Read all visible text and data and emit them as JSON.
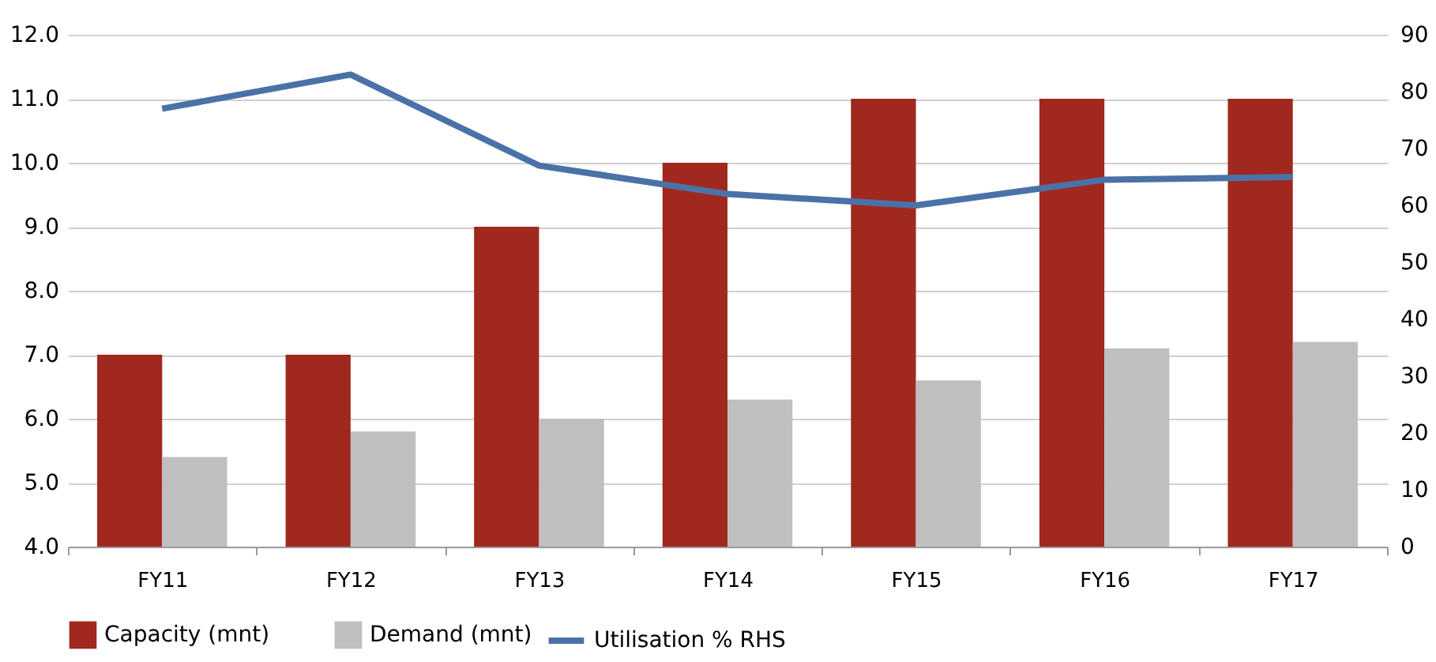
{
  "chart_data": {
    "type": "bar",
    "categories": [
      "FY11",
      "FY12",
      "FY13",
      "FY14",
      "FY15",
      "FY16",
      "FY17"
    ],
    "series": [
      {
        "name": "Capacity (mnt)",
        "color": "#a0281e",
        "values": [
          7,
          7,
          9,
          10,
          11,
          11,
          11
        ]
      },
      {
        "name": "Demand (mnt)",
        "color": "#bfbfbf",
        "values": [
          5.4,
          5.8,
          6.0,
          6.3,
          6.6,
          7.1,
          7.2
        ]
      },
      {
        "name": "Utilisation % RHS",
        "type": "line",
        "axis": "y2",
        "color": "#4a72a8",
        "values": [
          77,
          83,
          67,
          62,
          60,
          64.5,
          65
        ]
      }
    ],
    "ylim": [
      4,
      12
    ],
    "yticks": [
      {
        "value": 4,
        "label": "4.0"
      },
      {
        "value": 5,
        "label": "5.0"
      },
      {
        "value": 6,
        "label": "6.0"
      },
      {
        "value": 7,
        "label": "7.0"
      },
      {
        "value": 8,
        "label": "8.0"
      },
      {
        "value": 9,
        "label": "9.0"
      },
      {
        "value": 10,
        "label": "10.0"
      },
      {
        "value": 11,
        "label": "11.0"
      },
      {
        "value": 12,
        "label": "12.0"
      }
    ],
    "y2lim": [
      0,
      90
    ],
    "y2ticks": [
      0,
      10,
      20,
      30,
      40,
      50,
      60,
      70,
      80,
      90
    ],
    "grid": "y",
    "legend": "bottom",
    "marker": "none",
    "line_style": "solid"
  }
}
